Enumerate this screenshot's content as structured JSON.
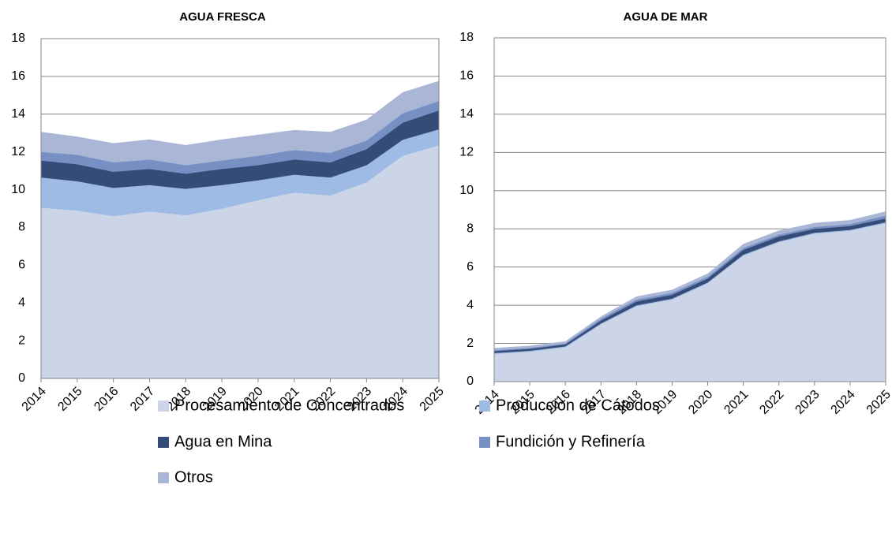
{
  "chart_data": [
    {
      "type": "stacked_area",
      "title": "AGUA FRESCA",
      "categories": [
        "2014",
        "2015",
        "2016",
        "2017",
        "2018",
        "2019",
        "2020",
        "2021",
        "2022",
        "2023",
        "2024",
        "2025"
      ],
      "ylim": [
        0,
        18
      ],
      "yticks": [
        0,
        2,
        4,
        6,
        8,
        10,
        12,
        14,
        16,
        18
      ],
      "grid": true,
      "series": [
        {
          "name": "Procesamiento de Concentrados",
          "color": "#ccd5e8",
          "values": [
            9.05,
            8.9,
            8.6,
            8.85,
            8.65,
            9.0,
            9.45,
            9.85,
            9.7,
            10.4,
            11.8,
            12.35
          ]
        },
        {
          "name": "Produccion de Cátodos",
          "color": "#9dbbe4",
          "values": [
            1.6,
            1.55,
            1.5,
            1.4,
            1.4,
            1.25,
            1.05,
            0.95,
            0.95,
            0.9,
            0.85,
            0.85
          ]
        },
        {
          "name": "Agua en Mina",
          "color": "#364c78",
          "values": [
            0.9,
            0.9,
            0.85,
            0.85,
            0.8,
            0.85,
            0.8,
            0.8,
            0.8,
            0.85,
            0.9,
            1.0
          ]
        },
        {
          "name": "Fundición y Refinería",
          "color": "#7790c4",
          "values": [
            0.45,
            0.5,
            0.5,
            0.5,
            0.45,
            0.45,
            0.5,
            0.5,
            0.5,
            0.45,
            0.5,
            0.5
          ]
        },
        {
          "name": "Otros",
          "color": "#a9b6d6",
          "values": [
            1.05,
            0.95,
            1.0,
            1.05,
            1.05,
            1.1,
            1.1,
            1.05,
            1.1,
            1.1,
            1.1,
            1.05
          ]
        }
      ]
    },
    {
      "type": "stacked_area",
      "title": "AGUA DE MAR",
      "categories": [
        "2014",
        "2015",
        "2016",
        "2017",
        "2018",
        "2019",
        "2020",
        "2021",
        "2022",
        "2023",
        "2024",
        "2025"
      ],
      "ylim": [
        0,
        18
      ],
      "yticks": [
        0,
        2,
        4,
        6,
        8,
        10,
        12,
        14,
        16,
        18
      ],
      "grid": true,
      "series": [
        {
          "name": "Procesamiento de Concentrados",
          "color": "#ccd5e8",
          "values": [
            1.45,
            1.57,
            1.8,
            3.0,
            3.95,
            4.3,
            5.15,
            6.6,
            7.3,
            7.75,
            7.9,
            8.3
          ]
        },
        {
          "name": "Produccion de Cátodos",
          "color": "#9dbbe4",
          "values": [
            0.05,
            0.05,
            0.05,
            0.05,
            0.05,
            0.05,
            0.05,
            0.05,
            0.05,
            0.05,
            0.05,
            0.05
          ]
        },
        {
          "name": "Agua en Mina",
          "color": "#364c78",
          "values": [
            0.1,
            0.1,
            0.1,
            0.15,
            0.2,
            0.2,
            0.2,
            0.25,
            0.25,
            0.2,
            0.2,
            0.2
          ]
        },
        {
          "name": "Fundición y Refinería",
          "color": "#7790c4",
          "values": [
            0.05,
            0.05,
            0.05,
            0.1,
            0.1,
            0.1,
            0.1,
            0.1,
            0.1,
            0.1,
            0.1,
            0.15
          ]
        },
        {
          "name": "Otros",
          "color": "#a9b6d6",
          "values": [
            0.1,
            0.1,
            0.1,
            0.1,
            0.15,
            0.15,
            0.15,
            0.2,
            0.2,
            0.2,
            0.2,
            0.2
          ]
        }
      ]
    }
  ]
}
